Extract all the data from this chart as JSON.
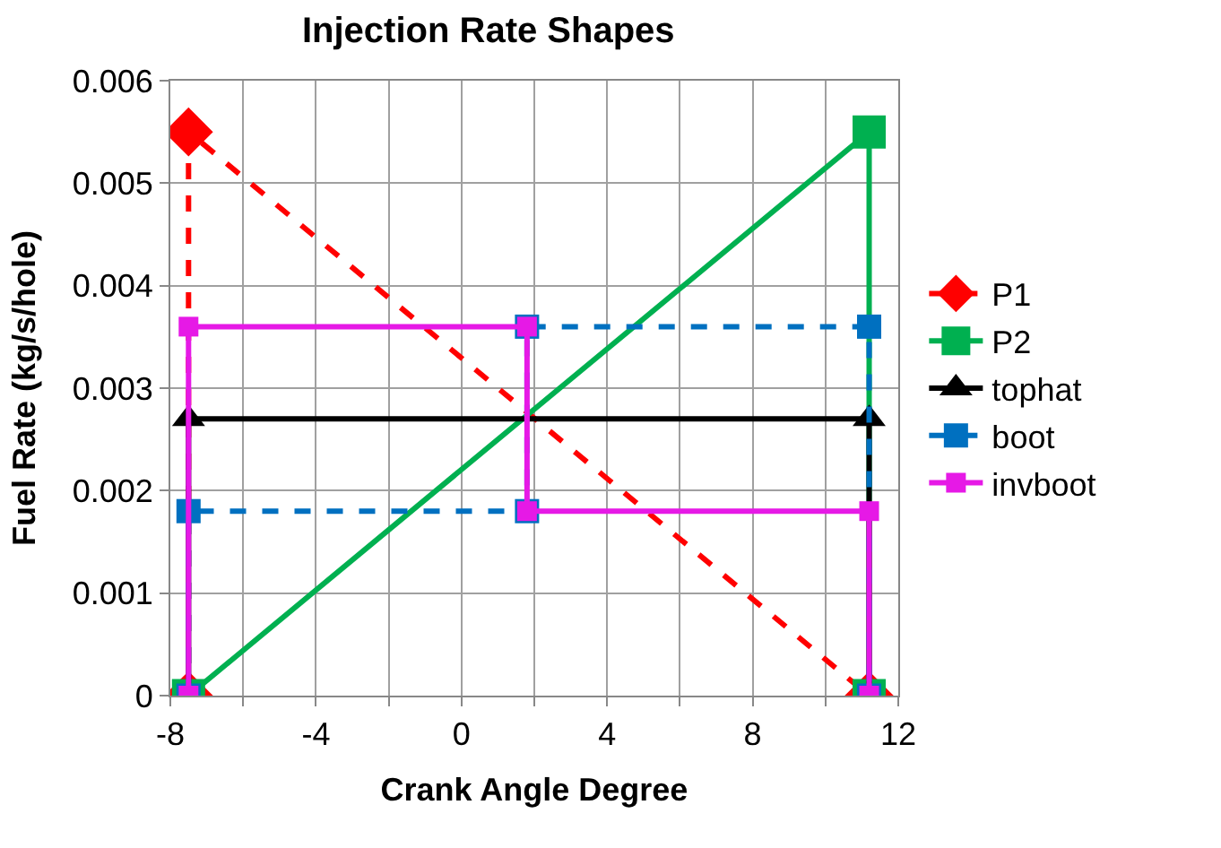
{
  "chart_data": {
    "type": "line",
    "title": "Injection Rate Shapes",
    "xlabel": "Crank Angle Degree",
    "ylabel": "Fuel Rate (kg/s/hole)",
    "xlim": [
      -8,
      12
    ],
    "xticks": [
      -8,
      {
        "value": -6,
        "label": null
      },
      -4,
      {
        "value": -2,
        "label": null
      },
      0,
      {
        "value": 2,
        "label": null
      },
      4,
      {
        "value": 6,
        "label": null
      },
      8,
      {
        "value": 10,
        "label": null
      },
      12
    ],
    "ylim": [
      0,
      0.006
    ],
    "yticks": [
      0,
      0.001,
      0.002,
      0.003,
      0.004,
      0.005,
      0.006
    ],
    "grid": true,
    "legend": "right",
    "series": [
      {
        "name": "P1",
        "color": "#ff0000",
        "marker": "diamond",
        "line_style": "dashed",
        "x": [
          -7.5,
          -7.5,
          11.2
        ],
        "values": [
          0,
          0.0055,
          0
        ]
      },
      {
        "name": "P2",
        "color": "#00b050",
        "marker": "square",
        "line_style": "solid",
        "x": [
          -7.5,
          11.2,
          11.2
        ],
        "values": [
          0,
          0.0055,
          0
        ]
      },
      {
        "name": "tophat",
        "color": "#000000",
        "marker": "triangle",
        "line_style": "solid",
        "x": [
          -7.5,
          -7.5,
          11.2,
          11.2
        ],
        "values": [
          0,
          0.0027,
          0.0027,
          0
        ]
      },
      {
        "name": "boot",
        "color": "#0070c0",
        "marker": "square",
        "line_style": "dashed",
        "x": [
          -7.5,
          -7.5,
          1.8,
          1.8,
          11.2,
          11.2
        ],
        "values": [
          0,
          0.0018,
          0.0018,
          0.0036,
          0.0036,
          0
        ]
      },
      {
        "name": "invboot",
        "color": "#e619e6",
        "marker": "square",
        "line_style": "solid",
        "x": [
          -7.5,
          -7.5,
          1.8,
          1.8,
          11.2,
          11.2
        ],
        "values": [
          0,
          0.0036,
          0.0036,
          0.0018,
          0.0018,
          0
        ]
      }
    ]
  }
}
